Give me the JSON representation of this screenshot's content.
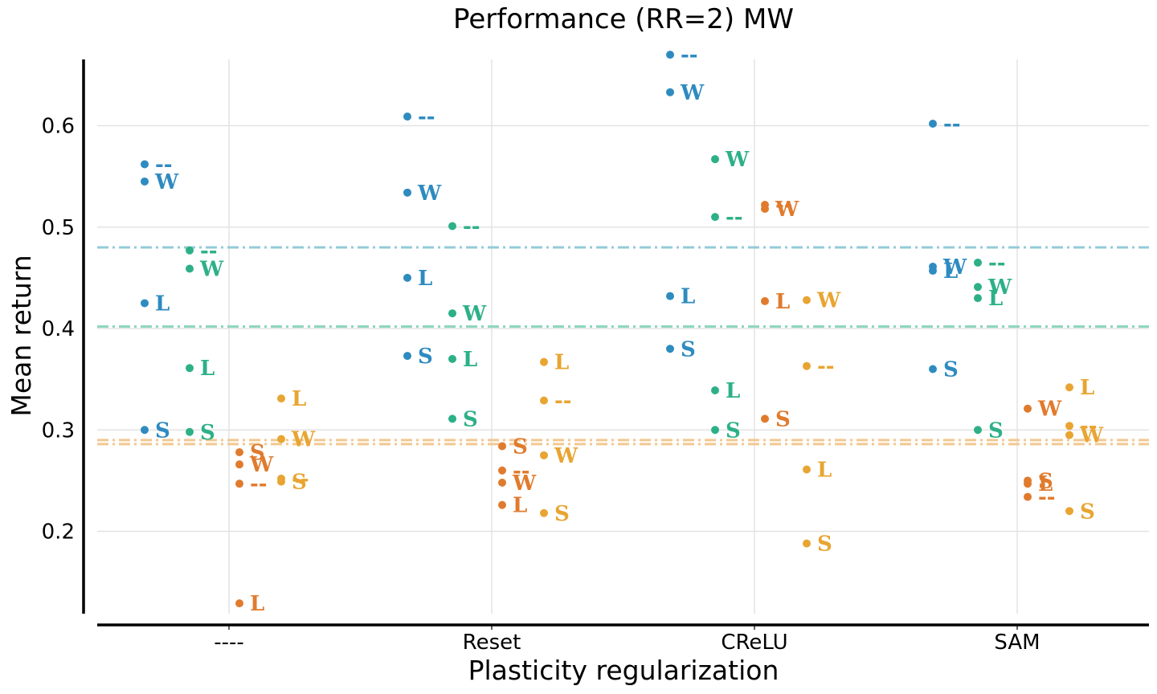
{
  "chart_data": {
    "type": "scatter",
    "title": "Performance (RR=2) MW",
    "xlabel": "Plasticity regularization",
    "ylabel": "Mean return",
    "categories": [
      "----",
      "Reset",
      "CReLU",
      "SAM"
    ],
    "yticks": [
      "0.2",
      "0.3",
      "0.4",
      "0.5",
      "0.6"
    ],
    "ylim": [
      0.115,
      0.66
    ],
    "grid": true,
    "series": [
      {
        "color": "#2E8BC0",
        "points": [
          {
            "category": "----",
            "value": 0.562,
            "label": "--"
          },
          {
            "category": "----",
            "value": 0.545,
            "label": "W"
          },
          {
            "category": "----",
            "value": 0.425,
            "label": "L"
          },
          {
            "category": "----",
            "value": 0.3,
            "label": "S"
          },
          {
            "category": "Reset",
            "value": 0.609,
            "label": "--"
          },
          {
            "category": "Reset",
            "value": 0.534,
            "label": "W"
          },
          {
            "category": "Reset",
            "value": 0.45,
            "label": "L"
          },
          {
            "category": "Reset",
            "value": 0.373,
            "label": "S"
          },
          {
            "category": "CReLU",
            "value": 0.67,
            "label": "--"
          },
          {
            "category": "CReLU",
            "value": 0.633,
            "label": "W"
          },
          {
            "category": "CReLU",
            "value": 0.432,
            "label": "L"
          },
          {
            "category": "CReLU",
            "value": 0.38,
            "label": "S"
          },
          {
            "category": "SAM",
            "value": 0.602,
            "label": "--"
          },
          {
            "category": "SAM",
            "value": 0.461,
            "label": "W"
          },
          {
            "category": "SAM",
            "value": 0.457,
            "label": "L"
          },
          {
            "category": "SAM",
            "value": 0.36,
            "label": "S"
          }
        ]
      },
      {
        "color": "#2DB088",
        "points": [
          {
            "category": "----",
            "value": 0.477,
            "label": "--"
          },
          {
            "category": "----",
            "value": 0.459,
            "label": "W"
          },
          {
            "category": "----",
            "value": 0.361,
            "label": "L"
          },
          {
            "category": "----",
            "value": 0.298,
            "label": "S"
          },
          {
            "category": "Reset",
            "value": 0.501,
            "label": "--"
          },
          {
            "category": "Reset",
            "value": 0.415,
            "label": "W"
          },
          {
            "category": "Reset",
            "value": 0.37,
            "label": "L"
          },
          {
            "category": "Reset",
            "value": 0.311,
            "label": "S"
          },
          {
            "category": "CReLU",
            "value": 0.567,
            "label": "W"
          },
          {
            "category": "CReLU",
            "value": 0.51,
            "label": "--"
          },
          {
            "category": "CReLU",
            "value": 0.339,
            "label": "L"
          },
          {
            "category": "CReLU",
            "value": 0.3,
            "label": "S"
          },
          {
            "category": "SAM",
            "value": 0.465,
            "label": "--"
          },
          {
            "category": "SAM",
            "value": 0.441,
            "label": "W"
          },
          {
            "category": "SAM",
            "value": 0.43,
            "label": "L"
          },
          {
            "category": "SAM",
            "value": 0.3,
            "label": "S"
          }
        ]
      },
      {
        "color": "#E07B2E",
        "points": [
          {
            "category": "----",
            "value": 0.278,
            "label": "S"
          },
          {
            "category": "----",
            "value": 0.266,
            "label": "W"
          },
          {
            "category": "----",
            "value": 0.247,
            "label": "--"
          },
          {
            "category": "----",
            "value": 0.129,
            "label": "L"
          },
          {
            "category": "Reset",
            "value": 0.284,
            "label": "S"
          },
          {
            "category": "Reset",
            "value": 0.26,
            "label": "--"
          },
          {
            "category": "Reset",
            "value": 0.248,
            "label": "W"
          },
          {
            "category": "Reset",
            "value": 0.226,
            "label": "L"
          },
          {
            "category": "CReLU",
            "value": 0.522,
            "label": "--"
          },
          {
            "category": "CReLU",
            "value": 0.518,
            "label": "W"
          },
          {
            "category": "CReLU",
            "value": 0.427,
            "label": "L"
          },
          {
            "category": "CReLU",
            "value": 0.311,
            "label": "S"
          },
          {
            "category": "SAM",
            "value": 0.321,
            "label": "W"
          },
          {
            "category": "SAM",
            "value": 0.25,
            "label": "S"
          },
          {
            "category": "SAM",
            "value": 0.247,
            "label": "L"
          },
          {
            "category": "SAM",
            "value": 0.234,
            "label": "--"
          }
        ]
      },
      {
        "color": "#E8A532",
        "points": [
          {
            "category": "----",
            "value": 0.331,
            "label": "L"
          },
          {
            "category": "----",
            "value": 0.291,
            "label": "W"
          },
          {
            "category": "----",
            "value": 0.252,
            "label": "--"
          },
          {
            "category": "----",
            "value": 0.249,
            "label": "S"
          },
          {
            "category": "Reset",
            "value": 0.367,
            "label": "L"
          },
          {
            "category": "Reset",
            "value": 0.329,
            "label": "--"
          },
          {
            "category": "Reset",
            "value": 0.275,
            "label": "W"
          },
          {
            "category": "Reset",
            "value": 0.218,
            "label": "S"
          },
          {
            "category": "CReLU",
            "value": 0.428,
            "label": "W"
          },
          {
            "category": "CReLU",
            "value": 0.363,
            "label": "--"
          },
          {
            "category": "CReLU",
            "value": 0.261,
            "label": "L"
          },
          {
            "category": "CReLU",
            "value": 0.188,
            "label": "S"
          },
          {
            "category": "SAM",
            "value": 0.342,
            "label": "L"
          },
          {
            "category": "SAM",
            "value": 0.304,
            "label": "--"
          },
          {
            "category": "SAM",
            "value": 0.295,
            "label": "W"
          },
          {
            "category": "SAM",
            "value": 0.22,
            "label": "S"
          }
        ]
      }
    ],
    "reference_lines": [
      {
        "value": 0.48,
        "color": "#93CBDA",
        "style": "dash-dot"
      },
      {
        "value": 0.402,
        "color": "#8ED6BD",
        "style": "dash-dot"
      },
      {
        "value": 0.29,
        "color": "#F2C890",
        "style": "dash-dot"
      },
      {
        "value": 0.286,
        "color": "#F2C890",
        "style": "dash-dot"
      }
    ]
  }
}
